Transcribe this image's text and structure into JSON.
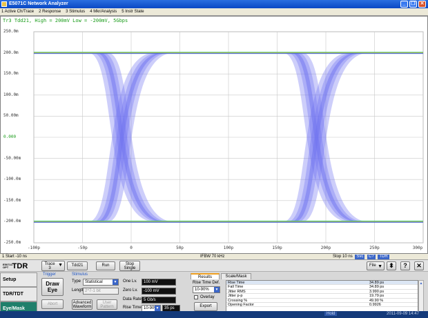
{
  "window": {
    "title": "E5071C Network Analyzer",
    "minimize_glyph": "_",
    "restore_glyph": "❐",
    "close_glyph": "✕"
  },
  "menu": [
    "1 Active Ch/Trace",
    "2 Response",
    "3 Stimulus",
    "4 Mkr/Analysis",
    "5 Instr State"
  ],
  "trace": {
    "header": "Tr3 Tdd21, High = 200mV Low = -200mV, 5Gbps",
    "color": "#1a9c1a"
  },
  "chart_data": {
    "type": "eye-diagram",
    "y_ticks": [
      "250.0m",
      "200.0m",
      "150.0m",
      "100.0m",
      "50.00m",
      "0.000",
      "-50.00m",
      "-100.0m",
      "-150.0m",
      "-200.0m",
      "-250.0m"
    ],
    "x_ticks": [
      "-100p",
      "-50p",
      "0",
      "50p",
      "100p",
      "150p",
      "200p",
      "250p",
      "300p"
    ],
    "ylim": [
      -0.25,
      0.25
    ],
    "xlim": [
      -100,
      300
    ],
    "high_level_v": 0.2,
    "low_level_v": -0.2,
    "crossings_ps": [
      0,
      200
    ],
    "eye_color": "#6f74f0",
    "rail_colors": [
      "#1fd07a",
      "#f0c020",
      "#3060e0"
    ],
    "grid": true
  },
  "status": {
    "start": "1  Start -10 ns",
    "ifbw": "IFBW 70 kHz",
    "stop": "Stop 10 ns",
    "badge1": "Svc",
    "badge2": "C?",
    "badge3": "TDR"
  },
  "toolbar": {
    "logo_small": "E5071C OPT",
    "logo_big": "TDR",
    "trace_button": "Trace 3",
    "param_button": "Tdd21",
    "run_button": "Run",
    "stop_single_button": "Stop Single",
    "file_button": "File",
    "help_glyph": "?",
    "close_glyph": "✕"
  },
  "sidetabs": [
    "Setup",
    "TDR/TDT",
    "Eye/Mask"
  ],
  "trigger": {
    "label": "Trigger",
    "draw_eye_button": "Draw Eye",
    "abort_button": "Abort"
  },
  "stimulus": {
    "label": "Stimulus",
    "type_label": "Type",
    "type_value": "Statistical",
    "length_label": "Length",
    "length_value": "2^7-1 bit",
    "advanced_button": "Advanced Waveform",
    "user_pattern_button": "User Pattern",
    "one_level_label": "One Lv.",
    "one_level_value": "100 mV",
    "zero_level_label": "Zero Lv.",
    "zero_level_value": "-100 mV",
    "data_rate_label": "Data Rate",
    "data_rate_value": "5 Gb/s",
    "rise_time_label": "Rise Time",
    "rise_time_mode": "10-90%",
    "rise_time_value": "35 ps"
  },
  "results": {
    "tab_results": "Results",
    "tab_scale_mask": "Scale/Mask",
    "rise_time_def_label": "Rise Time Def.",
    "rise_time_def_value": "10-90%",
    "overlay_label": "Overlay",
    "export_button": "Export",
    "rows": [
      {
        "name": "Rise Time",
        "value": "34.89 ps"
      },
      {
        "name": "Fall Time",
        "value": "34.89 ps"
      },
      {
        "name": "Jitter RMS",
        "value": "3.990 ps"
      },
      {
        "name": "Jitter p-p",
        "value": "19.79 ps"
      },
      {
        "name": "Crossing %",
        "value": "49.90 %"
      },
      {
        "name": "Opening Factor",
        "value": "0.9926"
      }
    ]
  },
  "sysbar": {
    "hold": "Hold",
    "datetime": "2011-09-09 14:47"
  }
}
